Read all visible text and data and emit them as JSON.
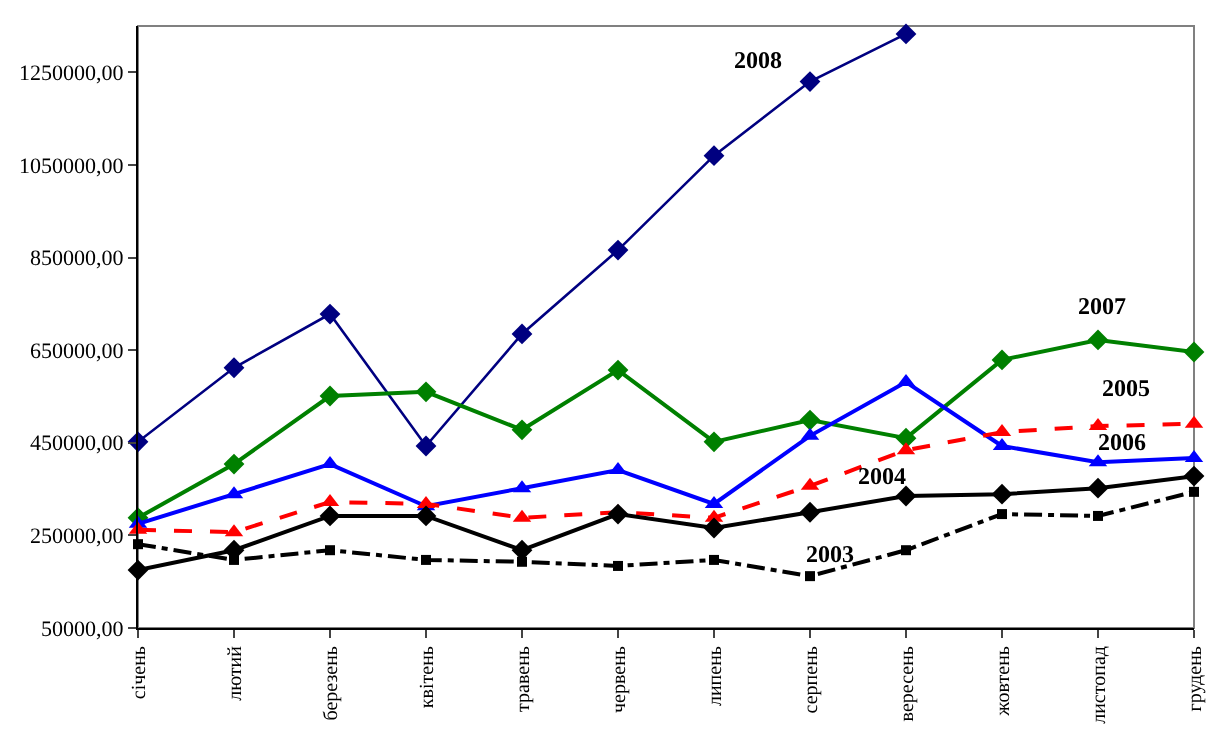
{
  "chart_data": {
    "type": "line",
    "categories": [
      "січень",
      "лютий",
      "березень",
      "квітень",
      "травень",
      "червень",
      "липень",
      "серпень",
      "вересень",
      "жовтень",
      "листопад",
      "грудень"
    ],
    "series": [
      {
        "name": "2008",
        "color": "#000080",
        "marker": "diamond",
        "line_style": "solid",
        "values": [
          452000,
          612000,
          728000,
          443000,
          685000,
          866000,
          1070000,
          1230000,
          1333000,
          null,
          null,
          null
        ]
      },
      {
        "name": "2007",
        "color": "#008000",
        "marker": "diamond",
        "line_style": "solid",
        "values": [
          288000,
          404000,
          551000,
          560000,
          478000,
          607000,
          452000,
          499000,
          460000,
          629000,
          672000,
          646000
        ]
      },
      {
        "name": "2006",
        "color": "#0000ff",
        "marker": "triangle",
        "line_style": "solid",
        "values": [
          275000,
          339000,
          404000,
          313000,
          352000,
          391000,
          318000,
          465000,
          581000,
          443000,
          408000,
          417000
        ]
      },
      {
        "name": "2005",
        "color": "#ff0000",
        "marker": "triangle",
        "line_style": "dashed",
        "values": [
          262000,
          257000,
          322000,
          318000,
          288000,
          300000,
          288000,
          357000,
          434000,
          473000,
          486000,
          491000
        ]
      },
      {
        "name": "2004",
        "color": "#000000",
        "marker": "diamond",
        "line_style": "solid",
        "values": [
          175000,
          218000,
          292000,
          292000,
          218000,
          296000,
          266000,
          300000,
          335000,
          339000,
          352000,
          378000
        ]
      },
      {
        "name": "2003",
        "color": "#000000",
        "marker": "square",
        "line_style": "dashdot",
        "values": [
          231000,
          197000,
          218000,
          197000,
          193000,
          184000,
          197000,
          162000,
          218000,
          296000,
          292000,
          344000
        ]
      }
    ],
    "ylim": [
      50000,
      1350000
    ],
    "yticks": [
      {
        "value": 50000,
        "label": "50000,00"
      },
      {
        "value": 250000,
        "label": "250000,00"
      },
      {
        "value": 450000,
        "label": "450000,00"
      },
      {
        "value": 650000,
        "label": "650000,00"
      },
      {
        "value": 850000,
        "label": "850000,00"
      },
      {
        "value": 1050000,
        "label": "1050000,00"
      },
      {
        "value": 1250000,
        "label": "1250000,00"
      }
    ],
    "grid": false,
    "legend": false
  }
}
